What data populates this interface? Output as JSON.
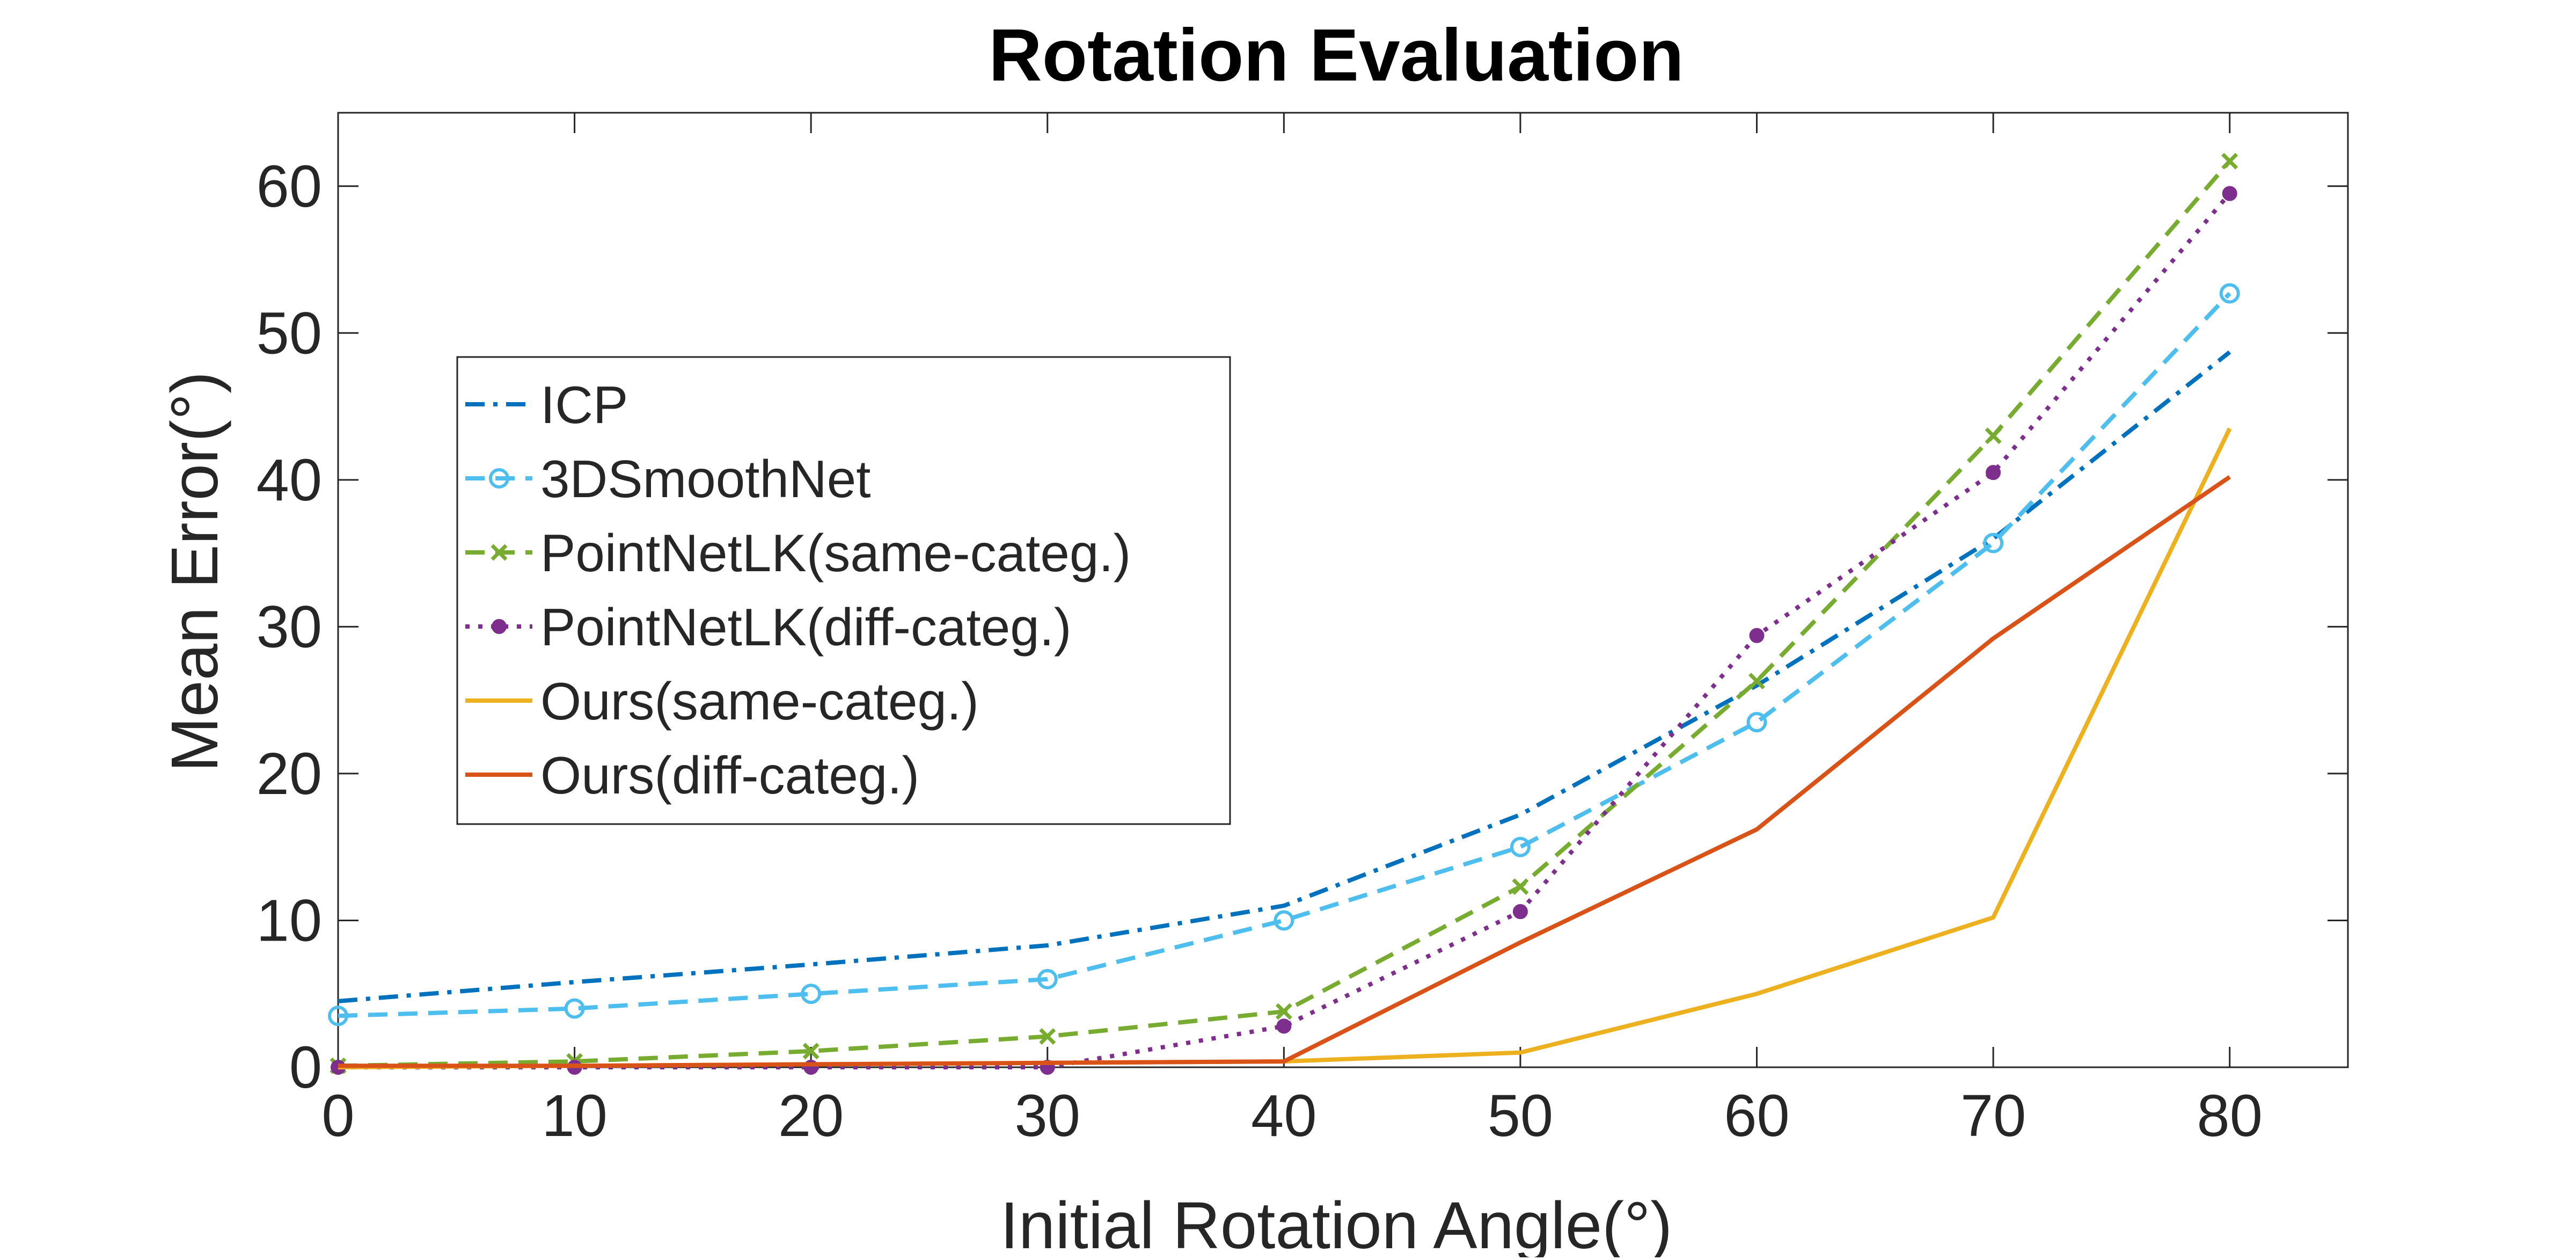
{
  "chart_data": {
    "type": "line",
    "title": "Rotation Evaluation",
    "xlabel": "Initial Rotation Angle(°)",
    "ylabel": "Mean Error(°)",
    "xlim": [
      0,
      85
    ],
    "ylim": [
      0,
      65
    ],
    "xticks": [
      0,
      10,
      20,
      30,
      40,
      50,
      60,
      70,
      80
    ],
    "yticks": [
      0,
      10,
      20,
      30,
      40,
      50,
      60
    ],
    "grid": false,
    "legend_position": "left",
    "x": [
      0,
      10,
      20,
      30,
      40,
      50,
      60,
      70,
      80
    ],
    "series": [
      {
        "name": "ICP",
        "color": "#0072BD",
        "dash": "dashdot",
        "marker": "none",
        "values": [
          4.5,
          5.8,
          7.0,
          8.3,
          11.0,
          17.2,
          26.0,
          36.0,
          48.7
        ]
      },
      {
        "name": "3DSmoothNet",
        "color": "#4DBEEE",
        "dash": "dashed",
        "marker": "circle",
        "values": [
          3.5,
          4.0,
          5.0,
          6.0,
          10.0,
          15.0,
          23.5,
          35.7,
          52.7
        ]
      },
      {
        "name": "PointNetLK(same-categ.)",
        "color": "#77AC30",
        "dash": "dashed",
        "marker": "x",
        "values": [
          0.1,
          0.4,
          1.1,
          2.1,
          3.8,
          12.3,
          26.3,
          43.0,
          61.7
        ]
      },
      {
        "name": "PointNetLK(diff-categ.)",
        "color": "#7E2F8E",
        "dash": "dotted",
        "marker": "dot",
        "values": [
          0.0,
          0.0,
          0.0,
          0.0,
          2.8,
          10.6,
          29.4,
          40.5,
          59.5
        ]
      },
      {
        "name": "Ours(same-categ.)",
        "color": "#EDB120",
        "dash": "solid",
        "marker": "none",
        "values": [
          0.0,
          0.1,
          0.2,
          0.3,
          0.4,
          1.0,
          5.0,
          10.2,
          43.5
        ]
      },
      {
        "name": "Ours(diff-categ.)",
        "color": "#D95319",
        "dash": "solid",
        "marker": "none",
        "values": [
          0.1,
          0.1,
          0.2,
          0.3,
          0.4,
          8.5,
          16.2,
          29.2,
          40.2
        ]
      }
    ]
  }
}
